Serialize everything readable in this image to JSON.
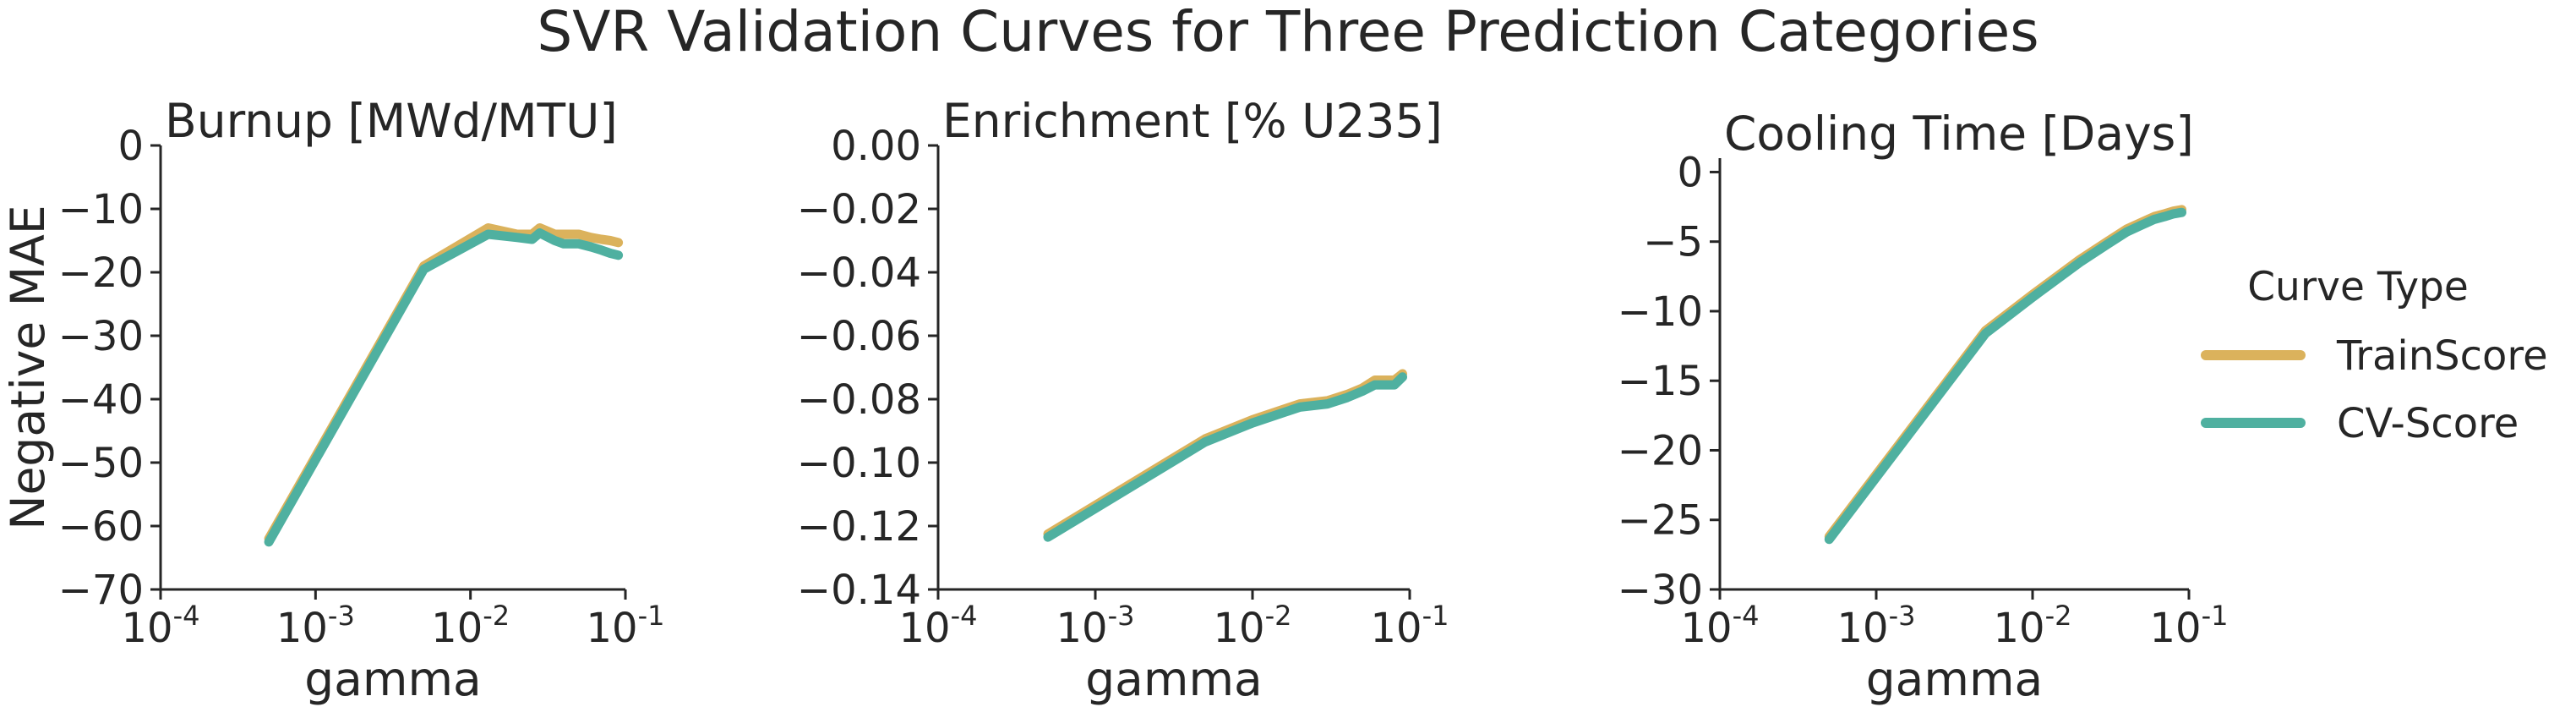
{
  "title": "SVR Validation Curves for Three Prediction Categories",
  "legend": {
    "title": "Curve Type",
    "placement": "right",
    "entries": [
      "TrainScore",
      "CV-Score"
    ]
  },
  "colors": {
    "TrainScore": "#dbb25c",
    "CV-Score": "#4fb0a0",
    "axis": "#262626",
    "text": "#262626"
  },
  "chart_data": [
    {
      "type": "line",
      "title": "Burnup [MWd/MTU]",
      "xlabel": "gamma",
      "ylabel": "Negative MAE",
      "xscale": "log",
      "xlim": [
        0.0001,
        0.1
      ],
      "ylim": [
        -70,
        0
      ],
      "grid": false,
      "xticks": [
        "10-4",
        "10-3",
        "10-2",
        "10-1"
      ],
      "yticks": [
        "0",
        "-10",
        "-20",
        "-30",
        "-40",
        "-50",
        "-60",
        "-70"
      ],
      "x": [
        0.0005,
        0.005,
        0.013,
        0.02,
        0.025,
        0.028,
        0.035,
        0.04,
        0.05,
        0.06,
        0.07,
        0.08,
        0.09
      ],
      "series": [
        {
          "name": "TrainScore",
          "values": [
            -62,
            -19,
            -13,
            -14,
            -14,
            -13,
            -14,
            -14,
            -14,
            -14.5,
            -14.8,
            -15,
            -15.3
          ]
        },
        {
          "name": "CV-Score",
          "values": [
            -62.5,
            -19.5,
            -14,
            -14.5,
            -14.8,
            -13.8,
            -15,
            -15.5,
            -15.5,
            -16,
            -16.5,
            -17,
            -17.3
          ]
        }
      ]
    },
    {
      "type": "line",
      "title": "Enrichment [% U235]",
      "xlabel": "gamma",
      "ylabel": "",
      "xscale": "log",
      "xlim": [
        0.0001,
        0.1
      ],
      "ylim": [
        -0.14,
        0
      ],
      "grid": false,
      "xticks": [
        "10-4",
        "10-3",
        "10-2",
        "10-1"
      ],
      "yticks": [
        "0.00",
        "-0.02",
        "-0.04",
        "-0.06",
        "-0.08",
        "-0.10",
        "-0.12",
        "-0.14"
      ],
      "x": [
        0.0005,
        0.005,
        0.01,
        0.02,
        0.03,
        0.04,
        0.05,
        0.06,
        0.07,
        0.08,
        0.09
      ],
      "series": [
        {
          "name": "TrainScore",
          "values": [
            -0.1225,
            -0.0925,
            -0.0865,
            -0.0815,
            -0.0805,
            -0.0785,
            -0.0765,
            -0.074,
            -0.074,
            -0.074,
            -0.072
          ]
        },
        {
          "name": "CV-Score",
          "values": [
            -0.1235,
            -0.0935,
            -0.0875,
            -0.0825,
            -0.0815,
            -0.0795,
            -0.0775,
            -0.0755,
            -0.0755,
            -0.0755,
            -0.073
          ]
        }
      ]
    },
    {
      "type": "line",
      "title": "Cooling Time [Days]",
      "xlabel": "gamma",
      "ylabel": "",
      "xscale": "log",
      "xlim": [
        0.0001,
        0.1
      ],
      "ylim": [
        -30,
        1
      ],
      "grid": false,
      "xticks": [
        "10-4",
        "10-3",
        "10-2",
        "10-1"
      ],
      "yticks": [
        "0",
        "-5",
        "-10",
        "-15",
        "-20",
        "-25",
        "-30"
      ],
      "x": [
        0.0005,
        0.005,
        0.01,
        0.02,
        0.03,
        0.04,
        0.05,
        0.06,
        0.07,
        0.08,
        0.09
      ],
      "series": [
        {
          "name": "TrainScore",
          "values": [
            -26.2,
            -11.4,
            -8.8,
            -6.3,
            -5,
            -4.1,
            -3.6,
            -3.2,
            -3,
            -2.8,
            -2.7
          ]
        },
        {
          "name": "CV-Score",
          "values": [
            -26.4,
            -11.6,
            -9,
            -6.5,
            -5.2,
            -4.3,
            -3.8,
            -3.4,
            -3.2,
            -3,
            -2.9
          ]
        }
      ]
    }
  ]
}
